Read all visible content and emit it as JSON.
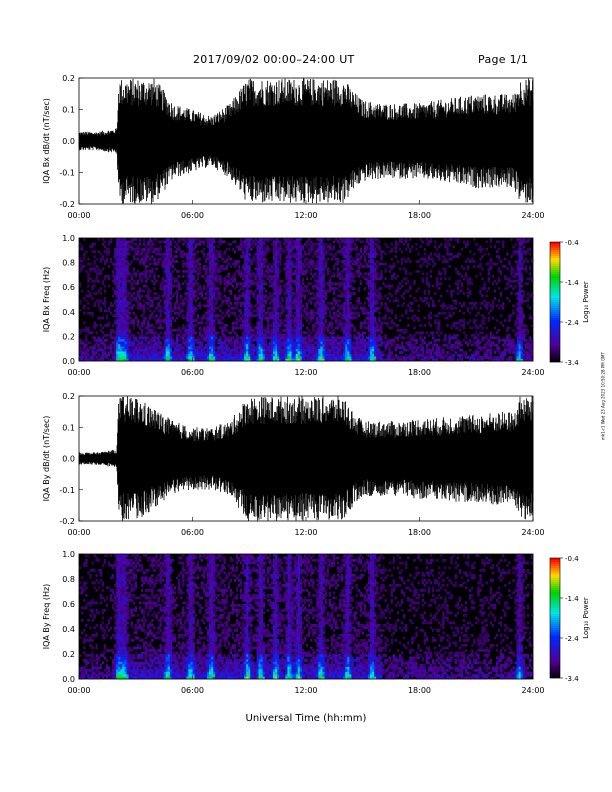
{
  "header": {
    "title": "2017/09/02  00:00–24:00 UT",
    "page": "Page 1/1"
  },
  "side_note": "mk1-r1 Wed 23 Aug 2023 10:50:28 PM GMT",
  "chart_data": [
    {
      "type": "line",
      "ylabel": "IQA Bx dB/dt (nT/sec)",
      "xlim": [
        0,
        24
      ],
      "ylim": [
        -0.2,
        0.2
      ],
      "xticks": [
        "00:00",
        "06:00",
        "12:00",
        "18:00",
        "24:00"
      ],
      "yticks": [
        "-0.2",
        "-0.1",
        "0.0",
        "0.1",
        "0.2"
      ],
      "yticks_values": [
        -0.2,
        -0.1,
        0.0,
        0.1,
        0.2
      ],
      "envelope_hours": [
        0,
        1,
        2,
        2.1,
        3,
        4,
        5,
        6,
        7,
        8,
        8.9,
        10,
        11,
        12,
        13,
        14,
        14.5,
        15,
        16,
        17,
        18,
        19,
        20,
        21,
        22,
        23,
        23.3,
        24
      ],
      "envelope_amplitude": [
        0.03,
        0.03,
        0.04,
        0.2,
        0.2,
        0.2,
        0.12,
        0.1,
        0.08,
        0.12,
        0.2,
        0.2,
        0.2,
        0.2,
        0.2,
        0.2,
        0.16,
        0.13,
        0.12,
        0.12,
        0.12,
        0.13,
        0.14,
        0.15,
        0.15,
        0.15,
        0.2,
        0.2
      ]
    },
    {
      "type": "heatmap",
      "ylabel": "IQA Bx Freq (Hz)",
      "colorbar_label": "Log₁₀ Power",
      "xlim": [
        0,
        24
      ],
      "ylim": [
        0,
        1.0
      ],
      "xticks": [
        "00:00",
        "06:00",
        "12:00",
        "18:00",
        "24:00"
      ],
      "yticks": [
        "0.0",
        "0.2",
        "0.4",
        "0.6",
        "0.8",
        "1.0"
      ],
      "yticks_values": [
        0,
        0.2,
        0.4,
        0.6,
        0.8,
        1.0
      ],
      "colorbar_ticks": [
        "-0.4",
        "-1.4",
        "-2.4",
        "-3.4"
      ],
      "colorbar_values": [
        -0.4,
        -1.4,
        -2.4,
        -3.4
      ],
      "clim": [
        -3.4,
        -0.4
      ],
      "event_hours": [
        2.1,
        2.4,
        4.7,
        5.9,
        7.0,
        8.9,
        9.6,
        10.4,
        11.1,
        11.6,
        12.8,
        14.2,
        15.5,
        23.3
      ]
    },
    {
      "type": "line",
      "ylabel": "IQA By dB/dt (nT/sec)",
      "xlim": [
        0,
        24
      ],
      "ylim": [
        -0.2,
        0.2
      ],
      "xticks": [
        "00:00",
        "06:00",
        "12:00",
        "18:00",
        "24:00"
      ],
      "yticks": [
        "-0.2",
        "-0.1",
        "0.0",
        "0.1",
        "0.2"
      ],
      "yticks_values": [
        -0.2,
        -0.1,
        0.0,
        0.1,
        0.2
      ],
      "envelope_hours": [
        0,
        1,
        2,
        2.1,
        3,
        4,
        5,
        6,
        7,
        8,
        8.9,
        10,
        11,
        12,
        13,
        14,
        14.5,
        15,
        16,
        17,
        18,
        19,
        20,
        21,
        22,
        23,
        23.3,
        24
      ],
      "envelope_amplitude": [
        0.02,
        0.02,
        0.03,
        0.2,
        0.2,
        0.16,
        0.12,
        0.1,
        0.1,
        0.12,
        0.2,
        0.2,
        0.2,
        0.2,
        0.2,
        0.2,
        0.15,
        0.12,
        0.12,
        0.12,
        0.13,
        0.13,
        0.14,
        0.14,
        0.15,
        0.15,
        0.2,
        0.2
      ]
    },
    {
      "type": "heatmap",
      "ylabel": "IQA By Freq (Hz)",
      "colorbar_label": "Log₁₀ Power",
      "xlabel": "Universal Time (hh:mm)",
      "xlim": [
        0,
        24
      ],
      "ylim": [
        0,
        1.0
      ],
      "xticks": [
        "00:00",
        "06:00",
        "12:00",
        "18:00",
        "24:00"
      ],
      "yticks": [
        "0.0",
        "0.2",
        "0.4",
        "0.6",
        "0.8",
        "1.0"
      ],
      "yticks_values": [
        0,
        0.2,
        0.4,
        0.6,
        0.8,
        1.0
      ],
      "colorbar_ticks": [
        "-0.4",
        "-1.4",
        "-2.4",
        "-3.4"
      ],
      "colorbar_values": [
        -0.4,
        -1.4,
        -2.4,
        -3.4
      ],
      "clim": [
        -3.4,
        -0.4
      ],
      "event_hours": [
        2.1,
        2.4,
        4.7,
        5.9,
        7.0,
        8.9,
        9.6,
        10.4,
        11.1,
        11.6,
        12.8,
        14.2,
        15.5,
        23.3
      ]
    }
  ]
}
